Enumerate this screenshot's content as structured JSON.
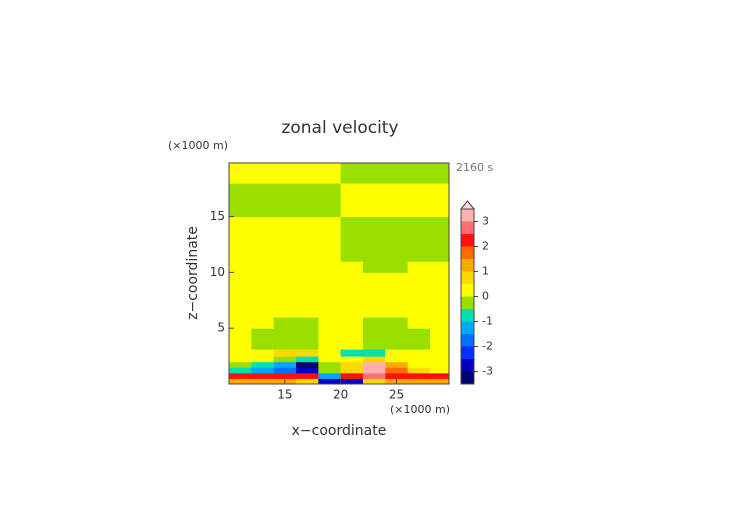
{
  "chart_data": {
    "type": "contour",
    "title": "zonal velocity",
    "x_unit": "(×1000 m)",
    "y_unit": "(×1000 m)",
    "time_label": "2160 s",
    "xlabel": "x−coordinate",
    "ylabel": "z−coordinate",
    "xlim": [
      10,
      29.7
    ],
    "ylim": [
      0,
      19.8
    ],
    "xticks": [
      15,
      20,
      25
    ],
    "yticks": [
      5,
      10,
      15
    ],
    "x": [
      11,
      13,
      15,
      17,
      19,
      21,
      23,
      25,
      27,
      29
    ],
    "z": [
      0.25,
      0.75,
      1.25,
      1.75,
      2.25,
      2.75,
      3.5,
      4.5,
      5.5,
      6.5,
      7.5,
      8.5,
      9.5,
      10.5,
      11.5,
      12.5,
      13.5,
      14.5,
      15.5,
      16.5,
      17.5,
      18.5,
      19.5
    ],
    "values": [
      [
        1.2,
        1.2,
        1.2,
        0.8,
        -2.8,
        -2.8,
        0.8,
        1.2,
        1.2,
        1.2
      ],
      [
        2.2,
        2.2,
        2.2,
        2.2,
        -1.2,
        2.2,
        2.7,
        2.2,
        2.2,
        2.2
      ],
      [
        -0.7,
        -1.2,
        -1.7,
        -2.8,
        -0.2,
        0.7,
        3.2,
        1.7,
        0.7,
        0.3
      ],
      [
        -0.2,
        -0.7,
        -1.2,
        -3.2,
        -0.2,
        0.7,
        3.2,
        1.2,
        0.3,
        0.2
      ],
      [
        0.2,
        0.2,
        -0.2,
        -0.7,
        0.2,
        0.2,
        0.7,
        0.2,
        0.2,
        0.2
      ],
      [
        0.2,
        0.2,
        0.7,
        0.7,
        0.2,
        -0.7,
        -0.7,
        0.2,
        0.2,
        0.2
      ],
      [
        0.2,
        -0.2,
        -0.2,
        -0.2,
        0.2,
        0.2,
        -0.2,
        -0.2,
        -0.2,
        0.2
      ],
      [
        0.2,
        -0.2,
        -0.2,
        -0.2,
        0.2,
        0.2,
        -0.2,
        -0.2,
        -0.2,
        0.2
      ],
      [
        0.2,
        0.2,
        -0.2,
        -0.2,
        0.2,
        0.2,
        -0.2,
        -0.2,
        0.2,
        0.2
      ],
      [
        0.2,
        0.2,
        0.2,
        0.2,
        0.2,
        0.2,
        0.2,
        0.2,
        0.2,
        0.2
      ],
      [
        0.2,
        0.2,
        0.2,
        0.2,
        0.2,
        0.2,
        0.2,
        0.2,
        0.2,
        0.2
      ],
      [
        0.2,
        0.2,
        0.2,
        0.2,
        0.2,
        0.2,
        0.2,
        0.2,
        0.2,
        0.2
      ],
      [
        0.2,
        0.2,
        0.2,
        0.2,
        0.2,
        0.2,
        0.2,
        0.2,
        0.2,
        0.2
      ],
      [
        0.2,
        0.2,
        0.2,
        0.2,
        0.2,
        0.2,
        -0.2,
        -0.2,
        0.2,
        0.2
      ],
      [
        0.2,
        0.2,
        0.2,
        0.2,
        0.2,
        -0.2,
        -0.2,
        -0.2,
        -0.2,
        -0.2
      ],
      [
        0.2,
        0.2,
        0.2,
        0.2,
        0.2,
        -0.2,
        -0.2,
        -0.2,
        -0.2,
        -0.2
      ],
      [
        0.2,
        0.2,
        0.2,
        0.2,
        0.2,
        -0.2,
        -0.2,
        -0.2,
        -0.2,
        -0.2
      ],
      [
        0.2,
        0.2,
        0.2,
        0.2,
        0.2,
        -0.2,
        -0.2,
        -0.2,
        -0.2,
        -0.2
      ],
      [
        -0.2,
        -0.2,
        -0.2,
        -0.2,
        -0.2,
        0.2,
        0.2,
        0.2,
        0.2,
        0.2
      ],
      [
        -0.2,
        -0.2,
        -0.2,
        -0.2,
        -0.2,
        0.2,
        0.2,
        0.2,
        0.2,
        0.2
      ],
      [
        -0.2,
        -0.2,
        -0.2,
        -0.2,
        -0.2,
        0.2,
        0.2,
        0.2,
        0.2,
        0.2
      ],
      [
        0.2,
        0.2,
        0.2,
        0.2,
        0.2,
        -0.2,
        -0.2,
        -0.2,
        -0.2,
        -0.2
      ],
      [
        0.2,
        0.2,
        0.2,
        0.2,
        0.2,
        -0.2,
        -0.2,
        -0.2,
        -0.2,
        -0.2
      ]
    ],
    "levels": [
      -3.5,
      -3,
      -2.5,
      -2,
      -1.5,
      -1,
      -0.5,
      0,
      0.5,
      1,
      1.5,
      2,
      2.5,
      3,
      3.5
    ],
    "colors": [
      "#00006e",
      "#0000c0",
      "#0030ff",
      "#0070ff",
      "#00a8ff",
      "#00e0b0",
      "#99e000",
      "#ffff00",
      "#ffd800",
      "#ffa800",
      "#ff6a00",
      "#ff1010",
      "#ff7070",
      "#ffb0b0"
    ],
    "extend_color": "#ffd8d8",
    "colorbar_ticks": [
      -3,
      -2,
      -1,
      0,
      1,
      2,
      3
    ]
  }
}
